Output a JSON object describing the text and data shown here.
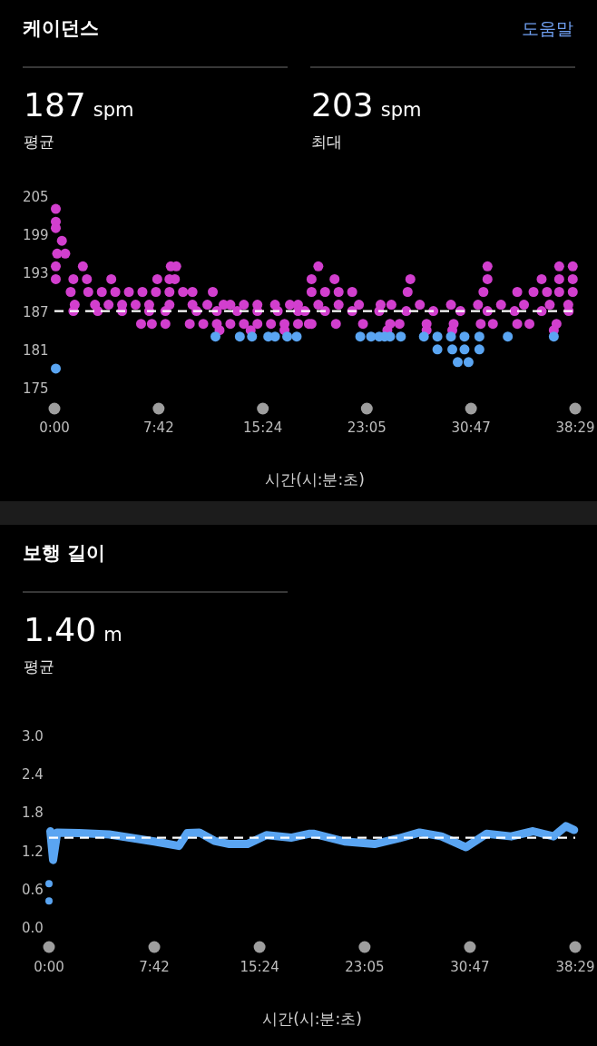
{
  "chart_data": [
    {
      "type": "scatter",
      "title": "케이던스",
      "annotations": [
        "도움말",
        "187 spm",
        "평균",
        "203 spm",
        "최대"
      ],
      "xlabel": "시간(시:분:초)",
      "xlim": [
        0,
        38.4833
      ],
      "xticks": [
        {
          "value": 0,
          "label": "0:00"
        },
        {
          "value": 7.7,
          "label": "7:42"
        },
        {
          "value": 15.4,
          "label": "15:24"
        },
        {
          "value": 23.0833,
          "label": "23:05"
        },
        {
          "value": 30.7833,
          "label": "30:47"
        },
        {
          "value": 38.4833,
          "label": "38:29"
        }
      ],
      "ylim": [
        175,
        205
      ],
      "yticks": [
        175,
        181,
        187,
        193,
        199,
        205
      ],
      "ref_lines": [
        {
          "axis": "y",
          "value": 187,
          "label": null,
          "color": "#ffffff",
          "line_style": "dashed"
        }
      ],
      "series": [
        {
          "color": "#d23fce",
          "x": [
            0.1,
            0.1,
            0.1,
            0.55,
            0.2,
            0.8,
            0.1,
            0.1,
            2.1,
            1.4,
            2.4,
            1.2,
            2.5,
            3.5,
            4.5,
            5.5,
            6.5,
            7.5,
            8.5,
            9.5,
            10.2,
            11.7,
            4.2,
            7.6,
            8.5,
            8.9,
            8.6,
            9.0,
            1.5,
            3,
            4,
            5,
            6,
            7,
            8.5,
            10.2,
            11.3,
            12.5,
            13,
            14,
            15,
            16.3,
            17.4,
            18,
            1.4,
            3.2,
            5,
            7,
            8.2,
            10.5,
            12,
            13.5,
            15,
            16.5,
            18,
            6.4,
            7.2,
            8.2,
            10,
            11,
            12,
            13,
            14,
            15,
            16,
            17,
            18,
            18.8,
            12.2,
            14.5,
            17,
            19.5,
            32.0,
            37.3,
            38.3,
            19.0,
            20.7,
            26.3,
            32.0,
            36.0,
            37.3,
            38.3,
            19.0,
            20.0,
            21.0,
            22.0,
            26.1,
            31.7,
            34.2,
            35.4,
            36.4,
            37.3,
            38.3,
            19.5,
            21,
            22.5,
            24.1,
            24.9,
            27,
            29.3,
            31.3,
            33,
            34.7,
            36.6,
            37.97,
            18.5,
            20,
            22,
            24,
            26,
            28,
            30,
            32,
            34,
            36,
            38,
            19,
            20.8,
            22.8,
            24.8,
            25.5,
            27.5,
            29.5,
            31.5,
            32.4,
            34.2,
            35.1,
            37.1,
            24.6,
            27.5,
            29.4,
            36.9
          ],
          "values": [
            203,
            201,
            200,
            198,
            196,
            196,
            194,
            192,
            194,
            192,
            192,
            190,
            190,
            190,
            190,
            190,
            190,
            190,
            190,
            190,
            190,
            190,
            192,
            192,
            192,
            192,
            194,
            194,
            188,
            188,
            188,
            188,
            188,
            188,
            188,
            188,
            188,
            188,
            188,
            188,
            188,
            188,
            188,
            188,
            187,
            187,
            187,
            187,
            187,
            187,
            187,
            187,
            187,
            187,
            187,
            185,
            185,
            185,
            185,
            185,
            185,
            185,
            185,
            185,
            185,
            185,
            185,
            185,
            184,
            184,
            184,
            194,
            194,
            194,
            194,
            192,
            192,
            192,
            192,
            192,
            192,
            192,
            190,
            190,
            190,
            190,
            190,
            190,
            190,
            190,
            190,
            190,
            190,
            188,
            188,
            188,
            188,
            188,
            188,
            188,
            188,
            188,
            188,
            188,
            188,
            187,
            187,
            187,
            187,
            187,
            187,
            187,
            187,
            187,
            187,
            187,
            185,
            185,
            185,
            185,
            185,
            185,
            185,
            185,
            185,
            185,
            185,
            185,
            184,
            184,
            184,
            184
          ]
        },
        {
          "color": "#5aa5f2",
          "x": [
            0.1,
            11.9,
            13.7,
            14.6,
            15.8,
            16.3,
            17.2,
            17.9,
            22.6,
            23.4,
            24.0,
            24.4,
            24.8,
            25.6,
            27.3,
            28.3,
            29.3,
            30.3,
            31.4,
            33.5,
            36.9,
            28.3,
            29.4,
            30.3,
            31.4,
            29.8,
            30.6
          ],
          "values": [
            178,
            183,
            183,
            183,
            183,
            183,
            183,
            183,
            183,
            183,
            183,
            183,
            183,
            183,
            183,
            183,
            183,
            183,
            183,
            183,
            183,
            181,
            181,
            181,
            181,
            179,
            179
          ]
        }
      ]
    },
    {
      "type": "line",
      "title": "보행 길이",
      "annotations": [
        "1.40 m",
        "평균"
      ],
      "xlabel": "시간(시:분:초)",
      "xlim": [
        0,
        38.4833
      ],
      "xticks": [
        {
          "value": 0,
          "label": "0:00"
        },
        {
          "value": 7.7,
          "label": "7:42"
        },
        {
          "value": 15.4,
          "label": "15:24"
        },
        {
          "value": 23.0833,
          "label": "23:05"
        },
        {
          "value": 30.7833,
          "label": "30:47"
        },
        {
          "value": 38.4833,
          "label": "38:29"
        }
      ],
      "ylim": [
        0,
        3
      ],
      "yticks": [
        {
          "value": 0,
          "label": "0.0"
        },
        0.6,
        1.2,
        1.8,
        2.4,
        {
          "value": 3,
          "label": "3.0"
        }
      ],
      "ref_lines": [
        {
          "axis": "y",
          "value": 1.4,
          "label": null,
          "color": "#ffffff",
          "line_style": "dashed"
        }
      ],
      "series": [
        {
          "color": "#5aa5f2",
          "x": [
            0.1,
            0.3,
            0.6,
            2.2,
            4.4,
            7.7,
            9.5,
            10.1,
            11,
            12.1,
            13.2,
            14.5,
            15.9,
            17.7,
            19,
            19.4,
            21.6,
            23.8,
            25.6,
            27.1,
            28.7,
            30.5,
            32,
            33.8,
            35.4,
            36.9,
            37.8,
            38.4
          ],
          "values": [
            1.5,
            1.05,
            1.48,
            1.47,
            1.45,
            1.34,
            1.27,
            1.47,
            1.48,
            1.35,
            1.3,
            1.3,
            1.44,
            1.4,
            1.46,
            1.46,
            1.34,
            1.3,
            1.39,
            1.48,
            1.42,
            1.25,
            1.46,
            1.42,
            1.5,
            1.42,
            1.58,
            1.52
          ]
        },
        {
          "type": "scatter",
          "color": "#5aa5f2",
          "x": [
            0,
            0
          ],
          "values": [
            0.68,
            0.41
          ]
        }
      ]
    }
  ]
}
